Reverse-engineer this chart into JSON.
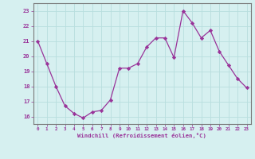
{
  "x": [
    0,
    1,
    2,
    3,
    4,
    5,
    6,
    7,
    8,
    9,
    10,
    11,
    12,
    13,
    14,
    15,
    16,
    17,
    18,
    19,
    20,
    21,
    22,
    23
  ],
  "y": [
    21.0,
    19.5,
    18.0,
    16.7,
    16.2,
    15.9,
    16.3,
    16.4,
    17.1,
    19.2,
    19.2,
    19.5,
    20.6,
    21.2,
    21.2,
    19.9,
    23.0,
    22.2,
    21.2,
    21.7,
    20.3,
    19.4,
    18.5,
    17.9
  ],
  "line_color": "#993399",
  "marker_color": "#993399",
  "bg_color": "#d6f0f0",
  "grid_color": "#b8dede",
  "xlabel": "Windchill (Refroidissement éolien,°C)",
  "xlabel_color": "#993399",
  "xtick_labels": [
    "0",
    "1",
    "2",
    "3",
    "4",
    "5",
    "6",
    "7",
    "8",
    "9",
    "10",
    "11",
    "12",
    "13",
    "14",
    "15",
    "16",
    "17",
    "18",
    "19",
    "20",
    "21",
    "22",
    "23"
  ],
  "ytick_labels": [
    "16",
    "17",
    "18",
    "19",
    "20",
    "21",
    "22",
    "23"
  ],
  "yticks": [
    16,
    17,
    18,
    19,
    20,
    21,
    22,
    23
  ],
  "ylim": [
    15.5,
    23.5
  ],
  "xlim": [
    -0.5,
    23.5
  ],
  "tick_color": "#993399",
  "spine_color": "#7a7a7a",
  "font_color": "#993399"
}
